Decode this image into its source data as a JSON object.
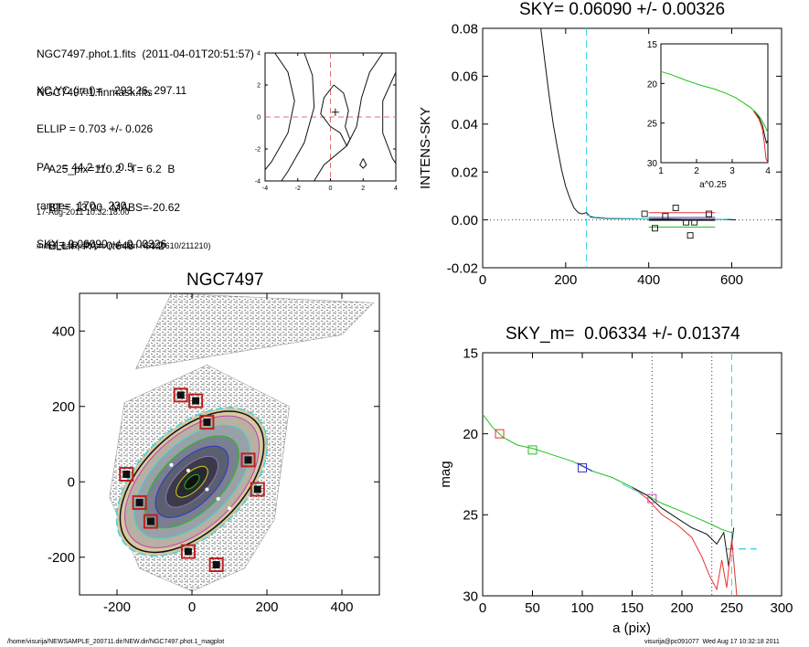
{
  "header": {
    "lines_top": [
      "NGC7497.phot.1.fits  (2011-04-01T20:51:57)",
      "NGC7497.1.finmask.fits"
    ],
    "params": [
      "XC,YC (iraf)=    293.26, 297.11",
      "ELLIP = 0.703 +/- 0.026",
      "PA    = 44.2 +/-   0.5",
      "range=  170.-  230.",
      "SKY= 0.06090 +/- 0.00326"
    ],
    "extra": [
      "A25_pix=110.2   T= 6.2  B",
      "BT=  13.00   MABS=-20.62",
      "ELLIP, PA= 0.648   44.2"
    ],
    "footnotes": [
      "17-Aug-2011 10:32:18.00",
      "make_datalist0.pro (version HS230610/211210)"
    ]
  },
  "footer": {
    "left": "/home/visurija/NEWSAMPLE_200711.dir/NEW.dir/NGC7497.phot.1_magplot",
    "right": "visurija@pc091077  Wed Aug 17 10:32:18 2011"
  },
  "colors": {
    "red": "#e8312f",
    "green": "#22c01c",
    "blue": "#3333cc",
    "cyan": "#3ad4e0",
    "magenta": "#c040c0",
    "dark": "#111111"
  },
  "chart_data": [
    {
      "id": "contour",
      "type": "contour",
      "title": "",
      "xlim": [
        -4,
        4
      ],
      "ylim": [
        -4,
        4
      ],
      "xticks": [
        "-4",
        "-2",
        "0",
        "2",
        "4"
      ],
      "yticks": [
        "-4",
        "-2",
        "0",
        "2",
        "4"
      ],
      "marker": [
        0.3,
        0.3
      ]
    },
    {
      "id": "sky",
      "type": "line",
      "title": "SKY= 0.06090 +/- 0.00326",
      "xlabel": "",
      "ylabel": "INTENS-SKY",
      "xlim": [
        0,
        720
      ],
      "ylim": [
        -0.02,
        0.08
      ],
      "xticks": [
        "0",
        "200",
        "400",
        "600"
      ],
      "yticks": [
        "-0.02",
        "0.00",
        "0.02",
        "0.04",
        "0.06",
        "0.08"
      ],
      "vline_x": 250,
      "series": [
        {
          "color": "dark",
          "points": [
            [
              140,
              0.08
            ],
            [
              150,
              0.066
            ],
            [
              160,
              0.052
            ],
            [
              170,
              0.04
            ],
            [
              180,
              0.03
            ],
            [
              190,
              0.021
            ],
            [
              200,
              0.014
            ],
            [
              210,
              0.009
            ],
            [
              220,
              0.005
            ],
            [
              230,
              0.003
            ],
            [
              240,
              0.0025
            ],
            [
              250,
              0.003
            ],
            [
              260,
              0.0012
            ],
            [
              280,
              0.0008
            ],
            [
              300,
              0.0006
            ],
            [
              340,
              0.0005
            ],
            [
              400,
              0.0004
            ],
            [
              450,
              0.0003
            ],
            [
              500,
              0.0002
            ],
            [
              540,
              0.0002
            ],
            [
              580,
              0.0001
            ],
            [
              610,
              0.0
            ]
          ]
        },
        {
          "color": "cyan",
          "points": [
            [
              250,
              0.002
            ],
            [
              270,
              0.0012
            ],
            [
              300,
              0.0008
            ],
            [
              350,
              0.0006
            ],
            [
              400,
              0.0004
            ],
            [
              450,
              0.0
            ],
            [
              500,
              0.0
            ],
            [
              550,
              0.0
            ],
            [
              600,
              0.0004
            ]
          ]
        }
      ],
      "boxes": [
        [
          390,
          0.0025
        ],
        [
          415,
          -0.0035
        ],
        [
          440,
          0.0015
        ],
        [
          465,
          0.005
        ],
        [
          490,
          -0.001
        ],
        [
          500,
          -0.0065
        ],
        [
          510,
          -0.001
        ],
        [
          545,
          0.0025
        ]
      ],
      "hlines": [
        {
          "color": "red",
          "x": [
            400,
            560
          ],
          "y": 0.003
        },
        {
          "color": "blue",
          "x": [
            400,
            560
          ],
          "y": 0.001
        },
        {
          "color": "dark",
          "x": [
            400,
            560
          ],
          "y": 0.0
        },
        {
          "color": "green",
          "x": [
            400,
            560
          ],
          "y": -0.003
        }
      ],
      "inset": {
        "type": "line",
        "xlabel": "a^0.25",
        "xlim": [
          1,
          4
        ],
        "ylim": [
          15,
          30
        ],
        "xticks": [
          "1",
          "2",
          "3",
          "4"
        ],
        "yticks": [
          "15",
          "20",
          "25",
          "30"
        ],
        "series": [
          {
            "color": "green",
            "points": [
              [
                1.0,
                18.5
              ],
              [
                1.3,
                18.9
              ],
              [
                1.7,
                19.6
              ],
              [
                2.1,
                20.2
              ],
              [
                2.5,
                20.7
              ],
              [
                2.8,
                21.2
              ],
              [
                3.1,
                21.8
              ],
              [
                3.3,
                22.4
              ],
              [
                3.5,
                23.0
              ],
              [
                3.65,
                23.6
              ],
              [
                3.8,
                24.4
              ],
              [
                3.9,
                25.2
              ],
              [
                4.0,
                26.2
              ]
            ]
          },
          {
            "color": "dark",
            "points": [
              [
                3.6,
                23.5
              ],
              [
                3.75,
                24.3
              ],
              [
                3.85,
                25.3
              ],
              [
                3.92,
                26.8
              ],
              [
                3.96,
                27.5
              ],
              [
                4.0,
                27.2
              ]
            ]
          },
          {
            "color": "red",
            "points": [
              [
                3.6,
                23.5
              ],
              [
                3.75,
                24.5
              ],
              [
                3.85,
                25.8
              ],
              [
                3.9,
                27.5
              ],
              [
                3.95,
                29.5
              ],
              [
                4.0,
                30
              ]
            ]
          }
        ]
      }
    },
    {
      "id": "galaxy",
      "type": "image",
      "title": "NGC7497",
      "xlim": [
        -300,
        500
      ],
      "ylim": [
        -300,
        500
      ],
      "xticks": [
        "-200",
        "0",
        "200",
        "400"
      ],
      "yticks": [
        "-200",
        "0",
        "200",
        "400"
      ],
      "masks": [
        [
          -175,
          20
        ],
        [
          -140,
          -55
        ],
        [
          -110,
          -105
        ],
        [
          -30,
          230
        ],
        [
          10,
          215
        ],
        [
          40,
          158
        ],
        [
          150,
          58
        ],
        [
          175,
          -20
        ],
        [
          -10,
          -185
        ],
        [
          65,
          -220
        ]
      ]
    },
    {
      "id": "mag",
      "type": "line",
      "title": "SKY_m=  0.06334 +/- 0.01374",
      "xlabel": "a (pix)",
      "ylabel": "mag",
      "xlim": [
        0,
        300
      ],
      "ylim": [
        15,
        30
      ],
      "xticks": [
        "0",
        "50",
        "100",
        "150",
        "200",
        "250",
        "300"
      ],
      "yticks": [
        "15",
        "20",
        "25",
        "30"
      ],
      "dotted_x": [
        170,
        230
      ],
      "dashed_x": 250,
      "sky_dash": {
        "x": [
          245,
          275
        ],
        "y": 27.1
      },
      "series": [
        {
          "color": "green",
          "points": [
            [
              0,
              18.8
            ],
            [
              10,
              19.6
            ],
            [
              20,
              20.2
            ],
            [
              35,
              20.7
            ],
            [
              50,
              20.9
            ],
            [
              70,
              21.3
            ],
            [
              90,
              21.7
            ],
            [
              110,
              22.3
            ],
            [
              130,
              22.7
            ],
            [
              150,
              23.3
            ],
            [
              165,
              23.8
            ],
            [
              180,
              24.3
            ],
            [
              200,
              24.8
            ],
            [
              215,
              25.2
            ],
            [
              230,
              25.6
            ],
            [
              240,
              25.9
            ],
            [
              250,
              26.1
            ]
          ]
        },
        {
          "color": "dark",
          "points": [
            [
              150,
              23.3
            ],
            [
              165,
              23.8
            ],
            [
              180,
              24.6
            ],
            [
              195,
              25.2
            ],
            [
              210,
              25.8
            ],
            [
              225,
              26.2
            ],
            [
              235,
              26.8
            ],
            [
              242,
              26.1
            ],
            [
              247,
              28.2
            ],
            [
              252,
              25.8
            ]
          ]
        },
        {
          "color": "red",
          "points": [
            [
              150,
              23.3
            ],
            [
              165,
              24.0
            ],
            [
              180,
              25.0
            ],
            [
              195,
              25.6
            ],
            [
              210,
              26.4
            ],
            [
              220,
              27.6
            ],
            [
              228,
              28.8
            ],
            [
              235,
              29.6
            ],
            [
              240,
              27.8
            ],
            [
              245,
              29.5
            ],
            [
              250,
              26.5
            ],
            [
              255,
              30
            ]
          ]
        },
        {
          "color": "cyan",
          "points": [
            [
              140,
              23.1
            ],
            [
              160,
              23.7
            ]
          ]
        },
        {
          "color": "blue",
          "points": [
            [
              95,
              21.8
            ],
            [
              110,
              22.3
            ]
          ]
        }
      ],
      "boxes": [
        {
          "x": 17,
          "y": 20.0,
          "color": "red"
        },
        {
          "x": 50,
          "y": 21.0,
          "color": "green"
        },
        {
          "x": 100,
          "y": 22.1,
          "color": "blue"
        },
        {
          "x": 170,
          "y": 24.0,
          "color": "magenta"
        }
      ]
    }
  ]
}
